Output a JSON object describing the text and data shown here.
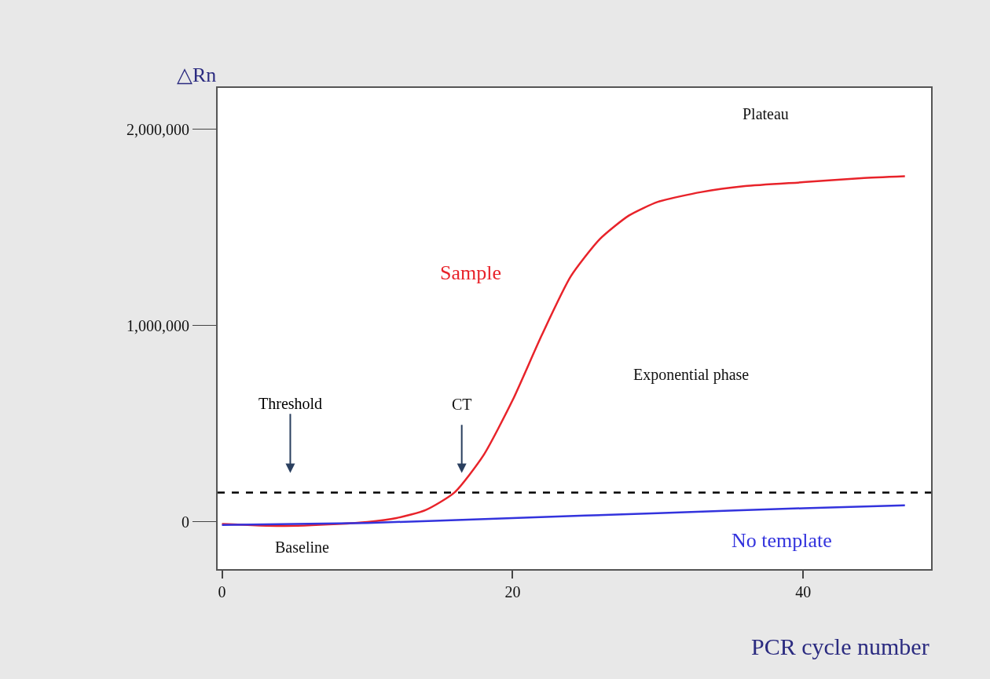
{
  "chart_data": {
    "type": "line",
    "xlabel": "PCR cycle number",
    "ylabel": "△Rn",
    "xlim": [
      -0.3,
      48.8
    ],
    "ylim": [
      -240000,
      2210000
    ],
    "xticks": [
      0,
      20,
      40
    ],
    "yticks": [
      {
        "value": 0,
        "label": "0"
      },
      {
        "value": 1000000,
        "label": "1,000,000"
      },
      {
        "value": 2000000,
        "label": "2,000,000"
      }
    ],
    "legend": false,
    "marker": "none",
    "line_style": "solid",
    "series": [
      {
        "name": "Sample",
        "color": "#e8232a",
        "x": [
          0,
          4,
          8,
          10,
          12,
          14,
          16,
          18,
          20,
          22,
          24,
          26,
          28,
          30,
          33,
          36,
          40,
          44,
          47
        ],
        "values": [
          -10000,
          -20000,
          -10000,
          0,
          20000,
          60000,
          150000,
          340000,
          620000,
          950000,
          1250000,
          1440000,
          1560000,
          1630000,
          1680000,
          1710000,
          1730000,
          1750000,
          1760000
        ]
      },
      {
        "name": "No template",
        "color": "#3333dd",
        "x": [
          0,
          10,
          20,
          30,
          40,
          47
        ],
        "values": [
          -15000,
          -5000,
          20000,
          45000,
          70000,
          85000
        ]
      }
    ],
    "ref_lines": [
      {
        "axis": "y",
        "value": 150000,
        "label": "Threshold",
        "color": "#000000",
        "line_style": "dashed"
      }
    ],
    "annotations": [
      "Baseline",
      "Exponential phase",
      "Plateau",
      "CT"
    ]
  }
}
